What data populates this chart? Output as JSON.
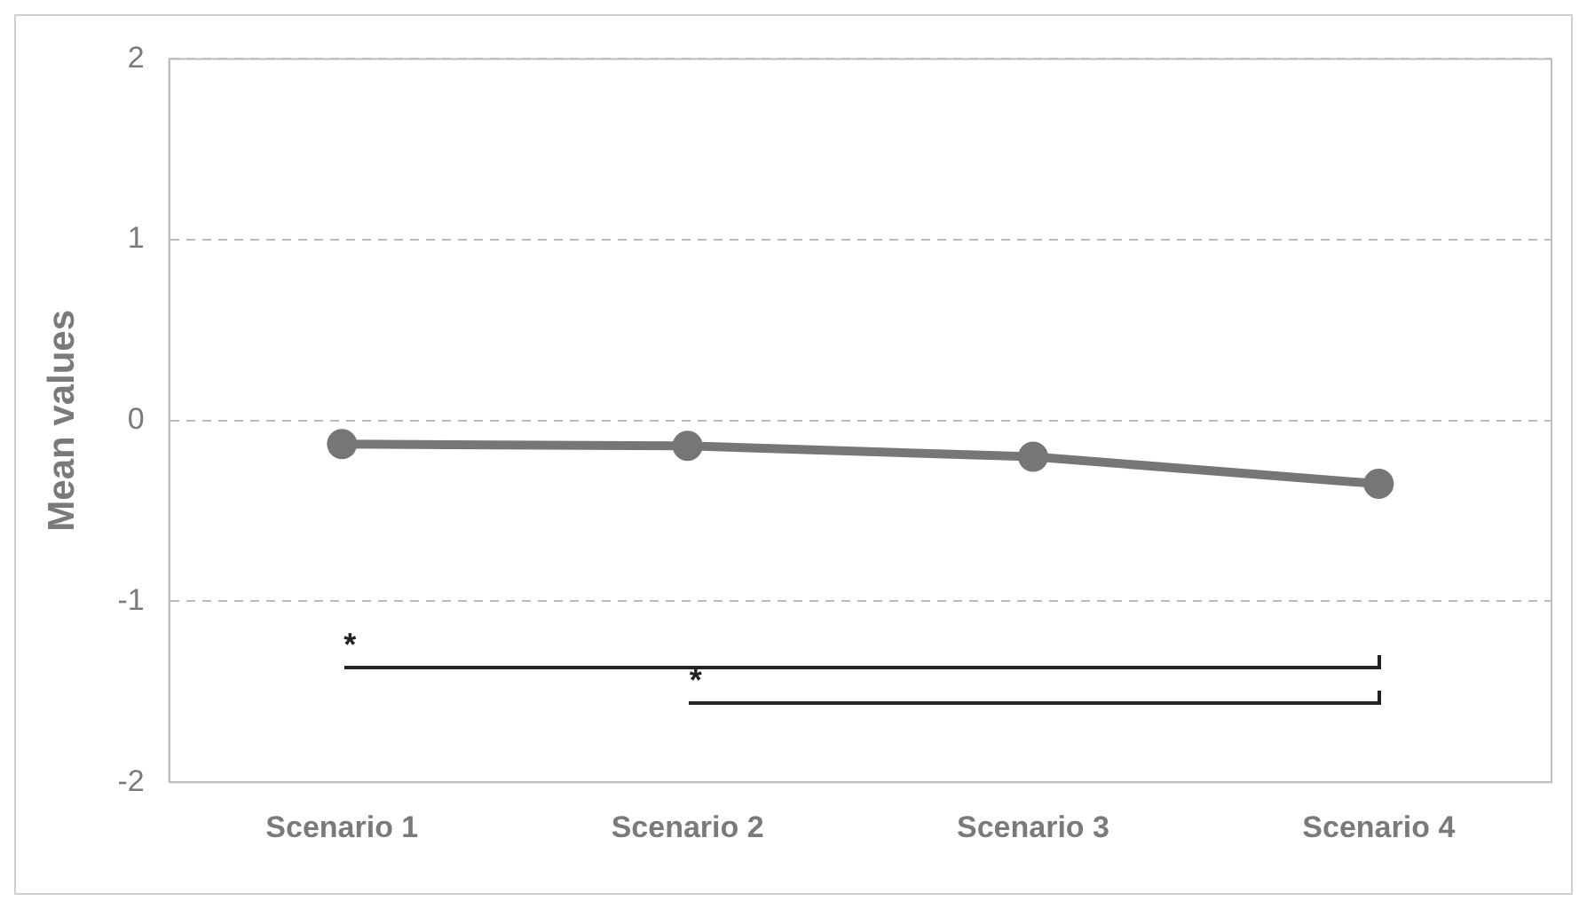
{
  "chart_data": {
    "type": "line",
    "ylabel": "Mean values",
    "categories": [
      "Scenario 1",
      "Scenario 2",
      "Scenario 3",
      "Scenario 4"
    ],
    "series": [
      {
        "color": "#767676",
        "values": [
          -0.13,
          -0.14,
          -0.2,
          -0.35
        ]
      }
    ],
    "ylim": [
      -2,
      2
    ],
    "yticks": [
      -2,
      -1,
      0,
      1,
      2
    ],
    "grid": "y",
    "marker": "circle",
    "line_style": "solid",
    "legend": false,
    "annotations": [
      "*",
      "*"
    ]
  }
}
